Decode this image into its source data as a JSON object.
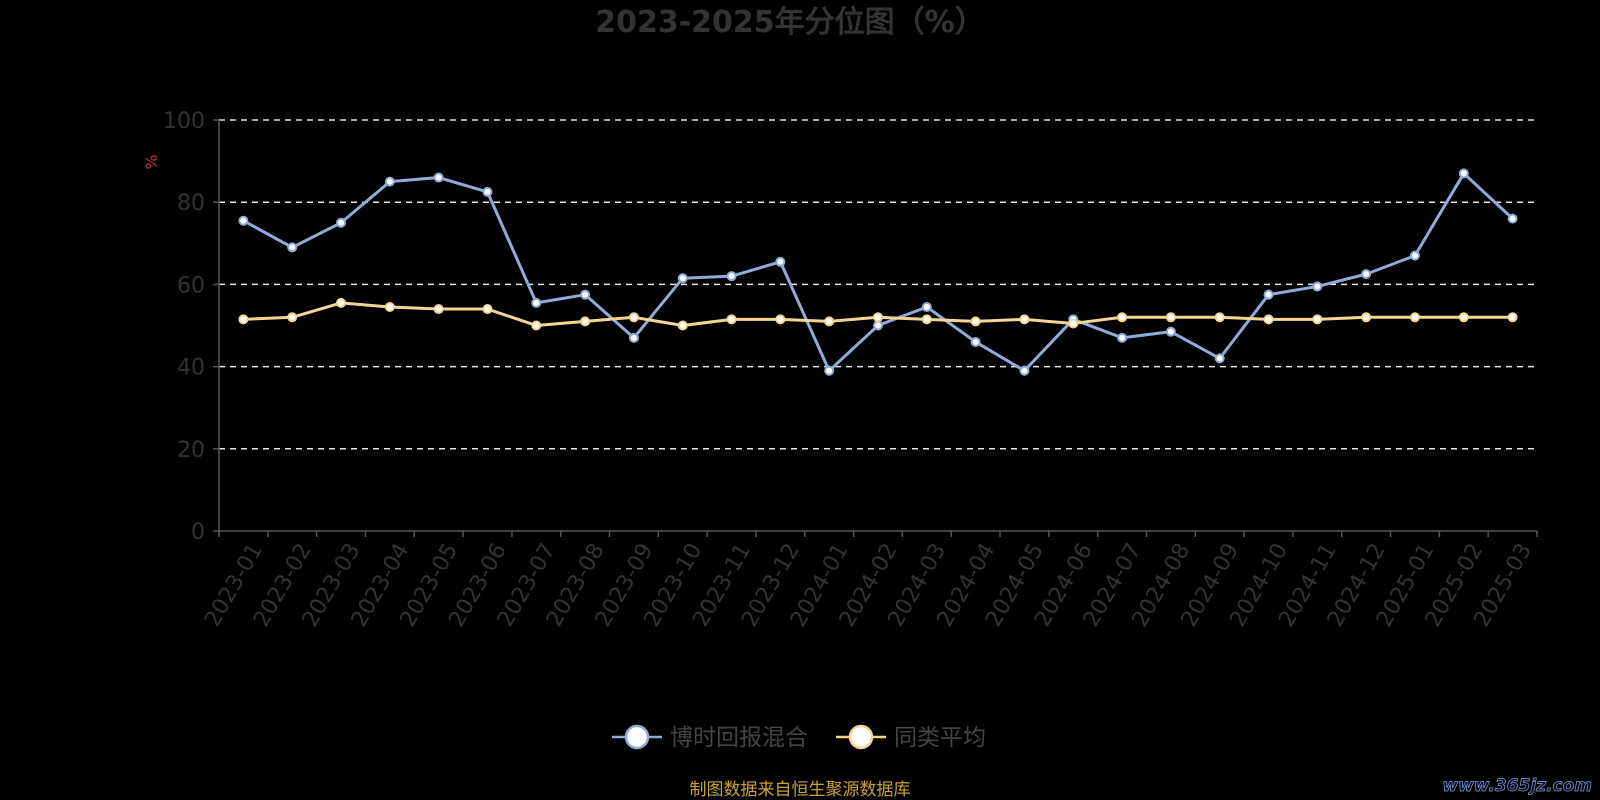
{
  "chart_data": {
    "type": "line",
    "title": "2023-2025年分位图（%）",
    "ylabel": "%",
    "xlabel": "",
    "ylim": [
      0,
      100
    ],
    "yticks": [
      0,
      20,
      40,
      60,
      80,
      100
    ],
    "grid": true,
    "legend": "bottom-center",
    "categories": [
      "2023-01",
      "2023-02",
      "2023-03",
      "2023-04",
      "2023-05",
      "2023-06",
      "2023-07",
      "2023-08",
      "2023-09",
      "2023-10",
      "2023-11",
      "2023-12",
      "2024-01",
      "2024-02",
      "2024-03",
      "2024-04",
      "2024-05",
      "2024-06",
      "2024-07",
      "2024-08",
      "2024-09",
      "2024-10",
      "2024-11",
      "2024-12",
      "2025-01",
      "2025-02",
      "2025-03"
    ],
    "series": [
      {
        "name": "博时回报混合",
        "color": "#8fabd8",
        "values": [
          75.5,
          69,
          75,
          85,
          86,
          82.5,
          55.5,
          57.5,
          47,
          61.5,
          62,
          65.5,
          39,
          50,
          54.5,
          46,
          39,
          51.5,
          47,
          48.5,
          42,
          57.5,
          59.5,
          62.5,
          67,
          87,
          76
        ]
      },
      {
        "name": "同类平均",
        "color": "#f5d593",
        "values": [
          51.5,
          52,
          55.5,
          54.5,
          54,
          54,
          50,
          51,
          52,
          50,
          51.5,
          51.5,
          51,
          52,
          51.5,
          51,
          51.5,
          50.5,
          52,
          52,
          52,
          51.5,
          51.5,
          52,
          52,
          52,
          52
        ]
      }
    ]
  },
  "source": "制图数据来自恒生聚源数据库",
  "watermark": "www.365jz.com"
}
